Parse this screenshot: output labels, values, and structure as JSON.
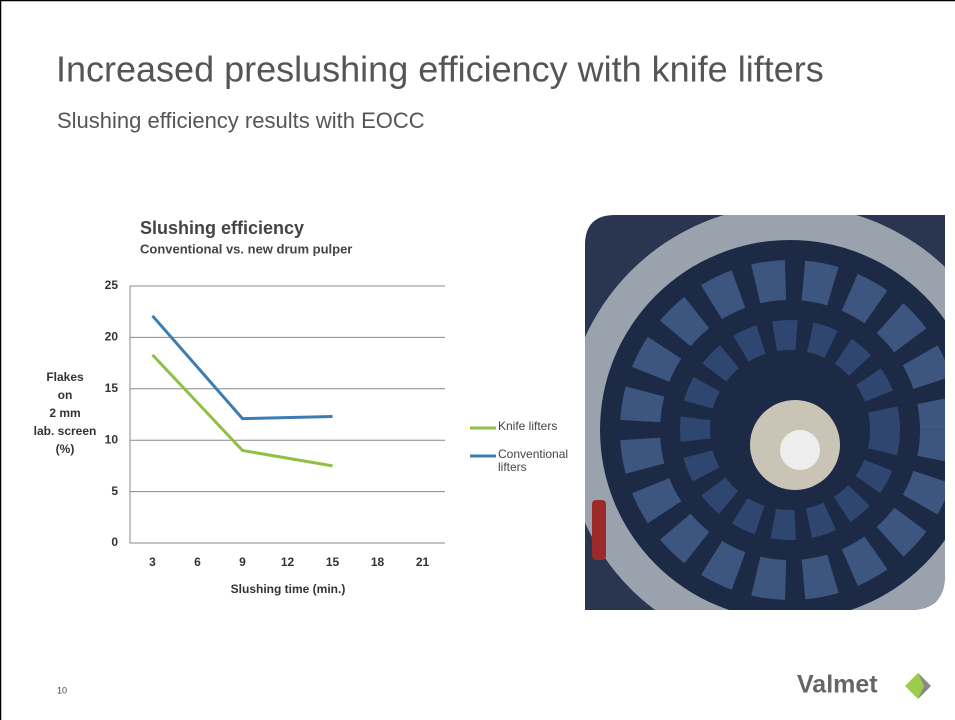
{
  "slide": {
    "title": "Increased preslushing efficiency with knife lifters",
    "subtitle": "Slushing efficiency results with EOCC",
    "page_number": "10",
    "logo": "Valmet"
  },
  "chart_data": {
    "type": "line",
    "title": "Slushing efficiency",
    "subtitle": "Conventional vs. new drum pulper",
    "x_label": "Slushing time (min.)",
    "y_label": [
      "Flakes",
      "on",
      "2 mm",
      "lab. screen",
      "(%)"
    ],
    "x": [
      3,
      9,
      15
    ],
    "series": [
      {
        "name": "Knife lifters",
        "color": "#8fc045",
        "values": [
          18.3,
          9,
          7.5
        ]
      },
      {
        "name": "Conventional lifters",
        "color": "#3b7db3",
        "values": [
          22.1,
          12.1,
          12.3
        ]
      }
    ],
    "xlim": [
      1.5,
      22.5
    ],
    "xticks": [
      3,
      6,
      9,
      12,
      15,
      18,
      21
    ],
    "ylim": [
      0,
      25
    ],
    "yticks": [
      0,
      5,
      10,
      15,
      20,
      25
    ],
    "grid": true
  }
}
